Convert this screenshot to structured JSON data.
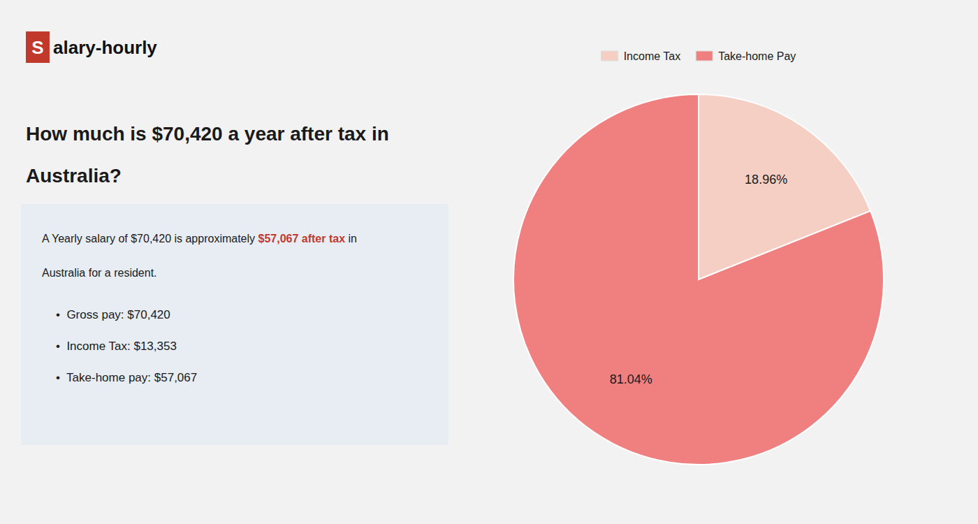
{
  "chart_data": {
    "type": "pie",
    "title": [
      "How much is $70,420 a year after tax in",
      "Australia?"
    ],
    "annotations": [
      "S",
      "alary-hourly",
      "A Yearly salary of $70,420 is approximately ",
      "$57,067 after tax",
      " in",
      "Australia for a resident.",
      "•  Gross pay: $70,420",
      "•  Income Tax: $13,353",
      "•  Take-home pay: $57,067"
    ],
    "categories": [
      "Income Tax",
      "Take-home Pay"
    ],
    "values": [
      18.96,
      81.04
    ],
    "value_labels": [
      "18.96%",
      "81.04%"
    ],
    "colors": [
      "#f5cfc4",
      "#f08080"
    ],
    "data_labels": true,
    "legend": "top"
  }
}
